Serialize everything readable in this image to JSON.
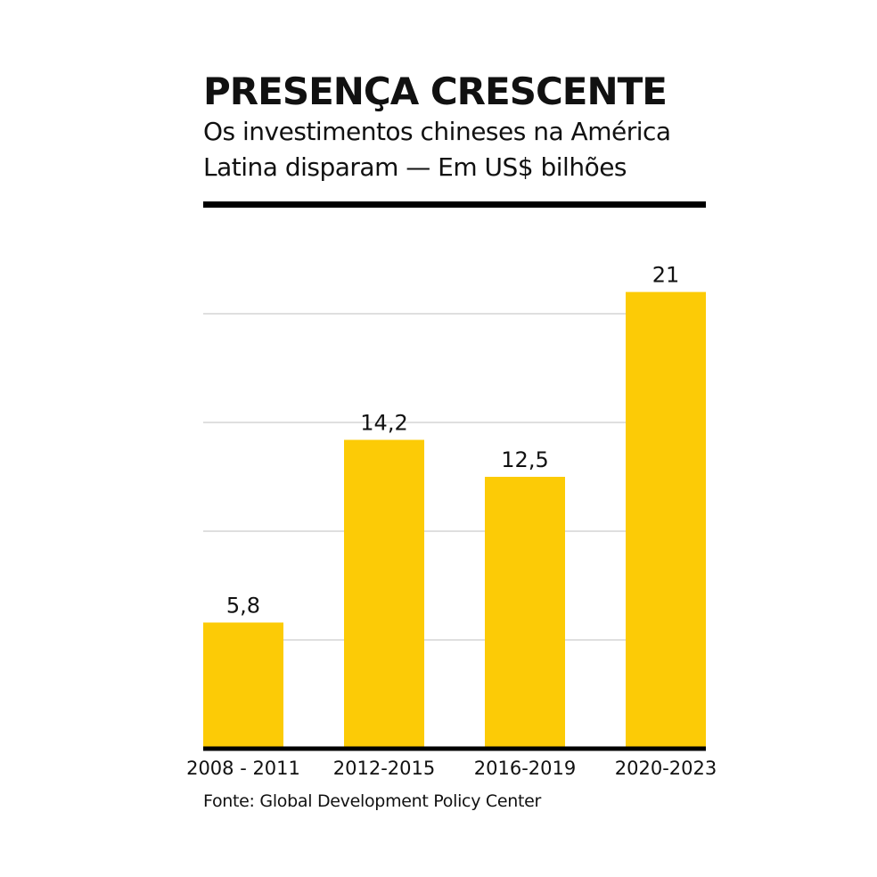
{
  "chart_data": {
    "type": "bar",
    "title": "PRESENÇA CRESCENTE",
    "subtitle": "Os investimentos chineses na América Latina disparam — Em US$ bilhões",
    "categories": [
      "2008 - 2011",
      "2012-2015",
      "2016-2019",
      "2020-2023"
    ],
    "values": [
      5.8,
      14.2,
      12.5,
      21
    ],
    "value_labels": [
      "5,8",
      "14,2",
      "12,5",
      "21"
    ],
    "color": "#fccb06",
    "ylim": [
      0,
      22
    ],
    "yticks": [
      0,
      5,
      10,
      15,
      20
    ],
    "grid": true,
    "tick_labels": false,
    "source": "Fonte: Global Development Policy Center"
  }
}
